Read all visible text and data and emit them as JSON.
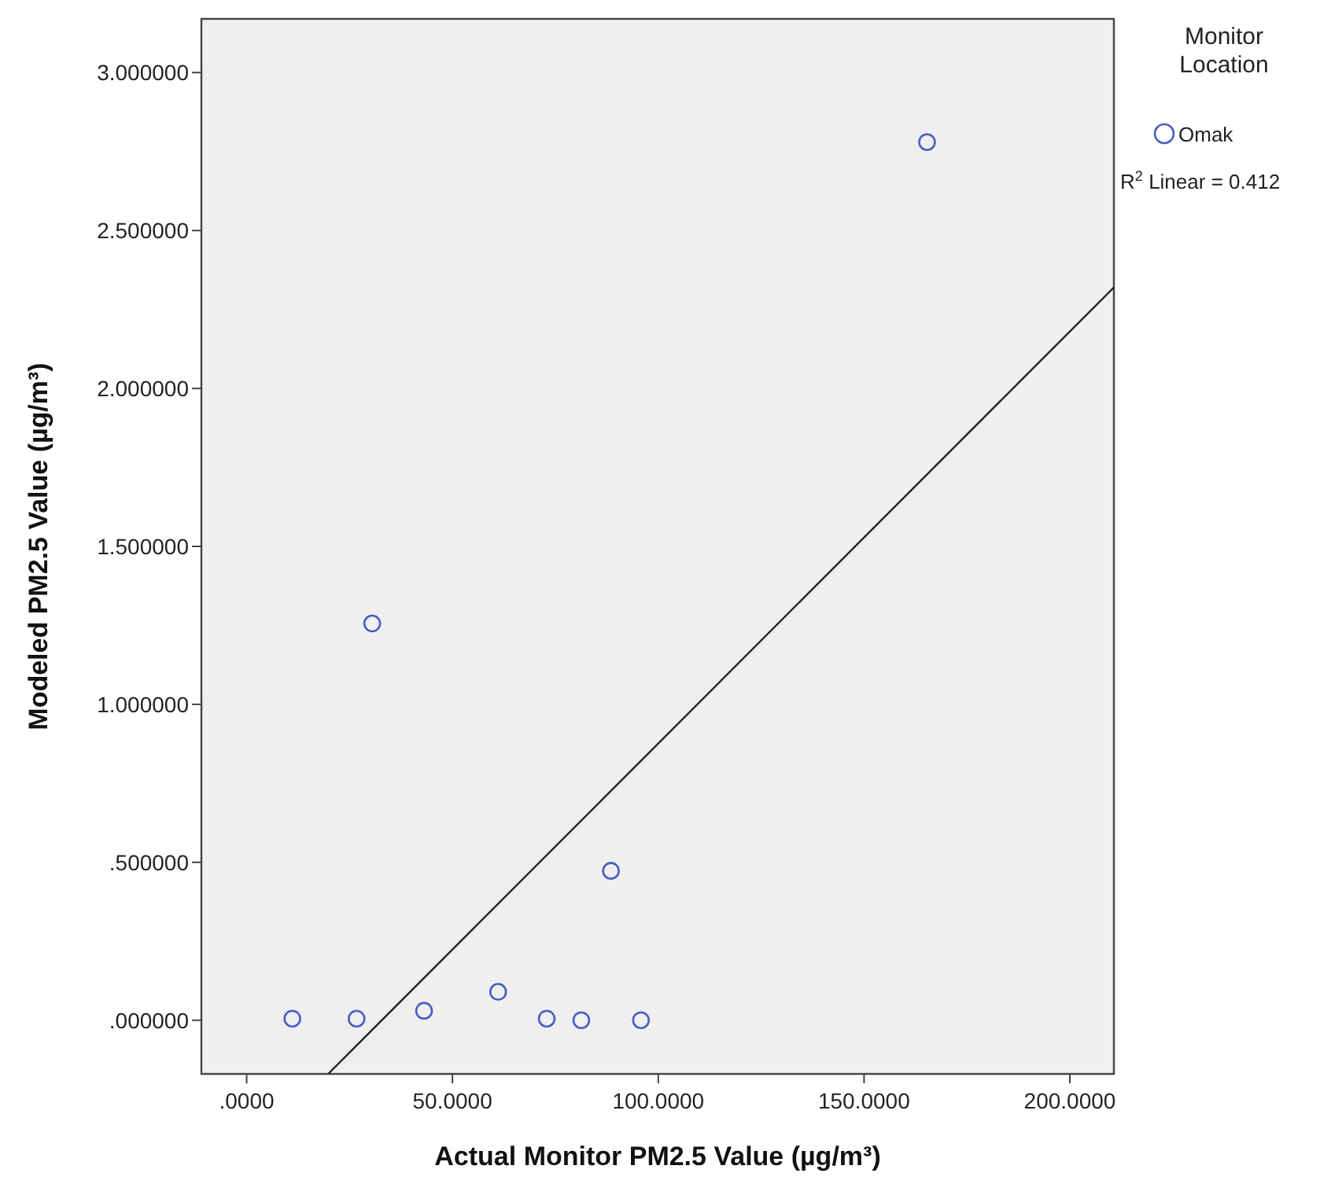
{
  "chart_data": {
    "type": "scatter",
    "xlabel": "Actual Monitor PM2.5 Value (µg/m³)",
    "ylabel": "Modeled PM2.5 Value (µg/m³)",
    "legend_title": "Monitor Location",
    "legend": "top right",
    "marker": "circle",
    "xlim": [
      -11,
      210.7
    ],
    "ylim": [
      -0.17,
      3.17
    ],
    "xticks": [
      {
        "value": 0,
        "label": ".0000"
      },
      {
        "value": 50,
        "label": "50.0000"
      },
      {
        "value": 100,
        "label": "100.0000"
      },
      {
        "value": 150,
        "label": "150.0000"
      },
      {
        "value": 200,
        "label": "200.0000"
      }
    ],
    "yticks": [
      {
        "value": 0,
        "label": ".000000"
      },
      {
        "value": 0.5,
        "label": ".500000"
      },
      {
        "value": 1,
        "label": "1.000000"
      },
      {
        "value": 1.5,
        "label": "1.500000"
      },
      {
        "value": 2,
        "label": "2.000000"
      },
      {
        "value": 2.5,
        "label": "2.500000"
      },
      {
        "value": 3,
        "label": "3.000000"
      }
    ],
    "series": [
      {
        "name": "Omak",
        "color": "#4a5fc1",
        "x": [
          11.1,
          26.7,
          43.1,
          61.1,
          72.9,
          81.3,
          95.8,
          88.5,
          30.5,
          165.3
        ],
        "values": [
          0.005,
          0.005,
          0.03,
          0.09,
          0.005,
          0,
          0,
          0.473,
          1.256,
          2.78
        ]
      },
      {
        "type": "line",
        "color": "#222222",
        "marker": "none",
        "x": [
          19.8,
          210.7
        ],
        "values": [
          -0.17,
          2.32
        ]
      }
    ],
    "annotations": [
      "R$^{2}$ Linear = 0.412"
    ]
  }
}
